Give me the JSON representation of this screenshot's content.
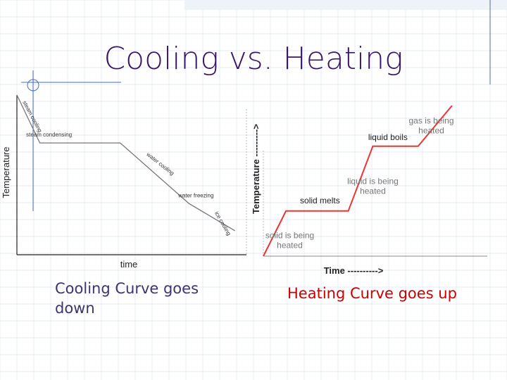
{
  "slide": {
    "title": "Cooling vs. Heating",
    "caption_left": "Cooling Curve goes down",
    "caption_right": "Heating Curve goes up"
  },
  "colors": {
    "title": "#3a1566",
    "left_caption": "#3d3470",
    "right_caption": "#cc0000",
    "accent_lines": "#4a6fb5",
    "grid": "#e6edf7",
    "heating_line": "#ee3333",
    "curve_gray": "#777777"
  },
  "chart_data": [
    {
      "type": "line",
      "title": "",
      "xlabel": "time",
      "ylabel": "Temperature",
      "grid": false,
      "xlim": [
        0,
        100
      ],
      "ylim": [
        0,
        100
      ],
      "series": [
        {
          "x": [
            0,
            10,
            45,
            75,
            95
          ],
          "y": [
            100,
            70,
            70,
            32,
            15
          ]
        }
      ],
      "annotations": [
        {
          "text": "steam cooling",
          "x": 6,
          "y": 86
        },
        {
          "text": "steam condensing",
          "x": 14,
          "y": 74
        },
        {
          "text": "water cooling",
          "x": 62,
          "y": 56
        },
        {
          "text": "water freezing",
          "x": 78,
          "y": 36
        },
        {
          "text": "ice cooling",
          "x": 89,
          "y": 19
        }
      ]
    },
    {
      "type": "line",
      "title": "",
      "xlabel": "Time ---------->",
      "ylabel": "Temperature --------->",
      "grid": false,
      "xlim": [
        0,
        100
      ],
      "ylim": [
        0,
        100
      ],
      "series": [
        {
          "x": [
            0,
            12,
            45,
            58,
            82,
            100
          ],
          "y": [
            0,
            30,
            30,
            73,
            73,
            100
          ]
        }
      ],
      "annotations": [
        {
          "text": "solid is being heated",
          "x": 14,
          "y": 12
        },
        {
          "text": "solid melts",
          "x": 30,
          "y": 35
        },
        {
          "text": "liquid is being heated",
          "x": 58,
          "y": 48
        },
        {
          "text": "liquid boils",
          "x": 66,
          "y": 77
        },
        {
          "text": "gas is being heated",
          "x": 89,
          "y": 88
        }
      ]
    }
  ]
}
